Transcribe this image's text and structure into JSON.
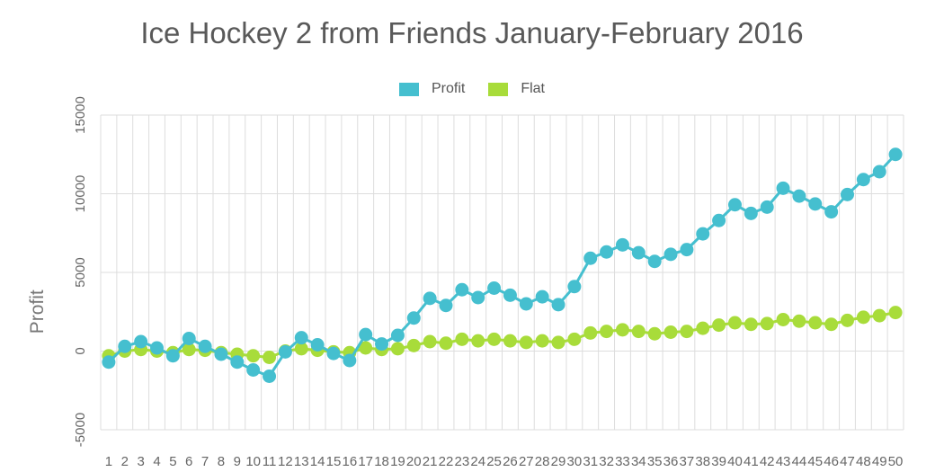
{
  "chart_data": {
    "type": "line",
    "title": "Ice Hockey 2 from Friends January-February 2016",
    "xlabel": "",
    "ylabel": "Profit",
    "ylim": [
      -5000,
      15000
    ],
    "yticks": [
      -5000,
      0,
      5000,
      10000,
      15000
    ],
    "x": [
      1,
      2,
      3,
      4,
      5,
      6,
      7,
      8,
      9,
      10,
      11,
      12,
      13,
      14,
      15,
      16,
      17,
      18,
      19,
      20,
      21,
      22,
      23,
      24,
      25,
      26,
      27,
      28,
      29,
      30,
      31,
      32,
      33,
      34,
      35,
      36,
      37,
      38,
      39,
      40,
      41,
      42,
      43,
      44,
      45,
      46,
      47,
      48,
      49,
      50
    ],
    "grid": true,
    "legend_position": "top-center",
    "series": [
      {
        "name": "Profit",
        "color": "#45bfcf",
        "values": [
          -700,
          300,
          600,
          200,
          -300,
          800,
          300,
          -200,
          -700,
          -1200,
          -1600,
          -50,
          850,
          400,
          -150,
          -600,
          1050,
          450,
          1000,
          2100,
          3350,
          2900,
          3900,
          3400,
          4000,
          3550,
          3000,
          3450,
          2950,
          4100,
          5900,
          6300,
          6750,
          6250,
          5700,
          6150,
          6450,
          7450,
          8300,
          9300,
          8750,
          9150,
          10350,
          9850,
          9350,
          8850,
          9950,
          10900,
          11400,
          12500
        ]
      },
      {
        "name": "Flat",
        "color": "#a8dc3a",
        "values": [
          -300,
          0,
          100,
          0,
          -100,
          100,
          50,
          -100,
          -200,
          -300,
          -400,
          0,
          150,
          50,
          -50,
          -100,
          200,
          100,
          150,
          350,
          600,
          500,
          750,
          650,
          750,
          650,
          550,
          650,
          550,
          750,
          1150,
          1250,
          1350,
          1250,
          1100,
          1200,
          1250,
          1450,
          1650,
          1800,
          1700,
          1750,
          2000,
          1900,
          1800,
          1700,
          1950,
          2150,
          2250,
          2450
        ]
      }
    ]
  }
}
